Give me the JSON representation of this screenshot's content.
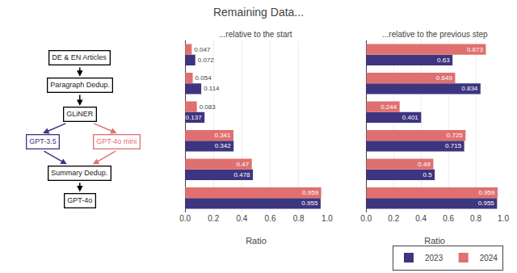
{
  "title": "Remaining Data...",
  "annotations": [
    "DE & EN Articles",
    "Paragraph Dedup.",
    "GLiNER",
    "GPT-3.5",
    "GPT-4o mini",
    "Summary Dedup.",
    "GPT-4o"
  ],
  "chart_data": [
    {
      "type": "bar",
      "orientation": "horizontal",
      "title": "...relative to the start",
      "xlabel": "Ratio",
      "categories": [
        null,
        null,
        null,
        null,
        null,
        null
      ],
      "series": [
        {
          "name": "2023",
          "color": "#3d3580",
          "values": [
            0.955,
            0.478,
            0.342,
            0.137,
            0.114,
            0.072
          ]
        },
        {
          "name": "2024",
          "color": "#e07070",
          "values": [
            0.959,
            0.47,
            0.341,
            0.083,
            0.054,
            0.047
          ]
        }
      ],
      "xlim": [
        0,
        1
      ],
      "xticks": [
        {
          "value": 0,
          "label": "0.0"
        },
        0.2,
        0.4,
        0.6,
        0.8,
        {
          "value": 1,
          "label": "1.0"
        }
      ],
      "grid": true,
      "data_labels": true,
      "tick_labels": "x"
    },
    {
      "type": "bar",
      "orientation": "horizontal",
      "title": "...relative to the previous step",
      "xlabel": "Ratio",
      "categories": [
        null,
        null,
        null,
        null,
        null,
        null
      ],
      "series": [
        {
          "name": "2023",
          "color": "#3d3580",
          "values": [
            0.955,
            0.5,
            0.715,
            0.401,
            0.834,
            0.63
          ]
        },
        {
          "name": "2024",
          "color": "#e07070",
          "values": [
            0.959,
            0.49,
            0.725,
            0.244,
            0.649,
            0.873
          ]
        }
      ],
      "xlim": [
        0,
        1
      ],
      "xticks": [
        {
          "value": 0,
          "label": "0.0"
        },
        0.2,
        0.4,
        0.6,
        0.8,
        {
          "value": 1,
          "label": "1.0"
        }
      ],
      "grid": true,
      "data_labels": true,
      "tick_labels": "x",
      "legend": "lower right"
    }
  ]
}
